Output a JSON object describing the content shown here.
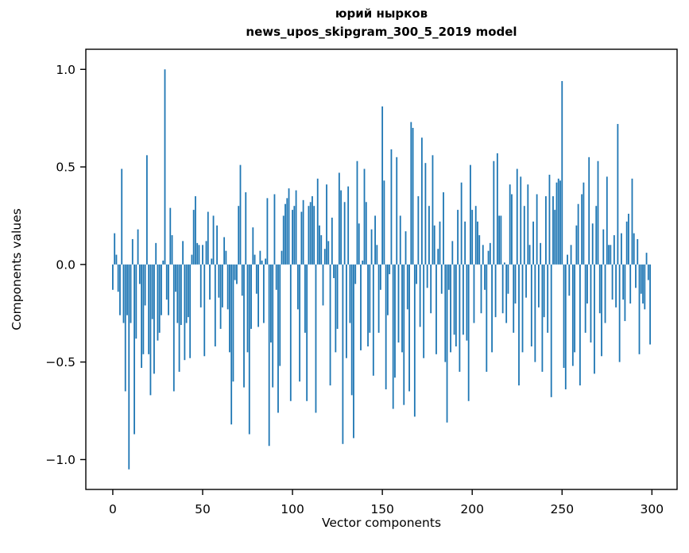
{
  "figure": {
    "title_line1": "юрий нырков",
    "title_line2": "news_upos_skipgram_300_5_2019 model"
  },
  "chart_data": {
    "type": "bar",
    "title": "юрий нырков — news_upos_skipgram_300_5_2019 model",
    "xlabel": "Vector components",
    "ylabel": "Components values",
    "x": "component indices 0..299",
    "xticks": {
      "values": [
        0,
        50,
        100,
        150,
        200,
        250,
        300
      ],
      "labels": [
        "0",
        "50",
        "100",
        "150",
        "200",
        "250",
        "300"
      ]
    },
    "yticks": {
      "values": [
        1.0,
        0.5,
        0.0,
        -0.5,
        -1.0
      ],
      "labels": [
        "1.0",
        "0.5",
        "0.0",
        "−0.5",
        "−1.0"
      ]
    },
    "xlim": [
      -15,
      314
    ],
    "ylim": [
      -1.153,
      1.103
    ],
    "grid": false,
    "legend": null,
    "bar_color": "#1f77b4",
    "values": [
      -0.13,
      0.16,
      0.05,
      -0.14,
      -0.26,
      0.49,
      -0.3,
      -0.65,
      -0.26,
      -1.05,
      -0.3,
      0.13,
      -0.87,
      -0.38,
      0.18,
      -0.1,
      -0.53,
      -0.46,
      -0.21,
      0.56,
      -0.46,
      -0.67,
      -0.28,
      -0.56,
      0.11,
      -0.39,
      -0.35,
      -0.26,
      0.02,
      1.0,
      -0.18,
      -0.26,
      0.29,
      0.15,
      -0.65,
      -0.14,
      -0.3,
      -0.55,
      -0.31,
      0.12,
      -0.49,
      -0.3,
      -0.27,
      -0.48,
      0.05,
      0.28,
      0.35,
      0.11,
      0.1,
      -0.22,
      0.1,
      -0.47,
      0.12,
      0.27,
      -0.18,
      0.03,
      0.25,
      -0.42,
      0.2,
      -0.17,
      -0.33,
      -0.22,
      0.14,
      0.07,
      -0.23,
      -0.45,
      -0.82,
      -0.6,
      -0.08,
      -0.1,
      0.3,
      0.51,
      -0.16,
      -0.63,
      0.37,
      -0.45,
      -0.87,
      -0.33,
      0.19,
      0.05,
      -0.15,
      -0.32,
      0.07,
      0.02,
      -0.3,
      0.03,
      0.34,
      -0.93,
      -0.4,
      -0.63,
      0.36,
      -0.13,
      -0.76,
      -0.52,
      0.07,
      0.25,
      0.31,
      0.34,
      0.39,
      -0.7,
      0.28,
      0.3,
      0.38,
      -0.23,
      -0.6,
      0.27,
      0.33,
      -0.35,
      -0.7,
      0.3,
      0.32,
      0.35,
      0.3,
      -0.76,
      0.44,
      0.2,
      0.15,
      -0.21,
      0.08,
      0.41,
      0.12,
      -0.62,
      0.24,
      -0.07,
      -0.45,
      -0.33,
      0.47,
      0.38,
      -0.92,
      0.32,
      -0.48,
      0.4,
      -0.3,
      -0.67,
      -0.89,
      -0.1,
      0.53,
      0.21,
      -0.44,
      0.02,
      0.49,
      0.32,
      -0.42,
      -0.35,
      0.18,
      -0.57,
      0.25,
      0.1,
      -0.35,
      -0.13,
      0.81,
      0.43,
      -0.64,
      -0.26,
      -0.05,
      0.59,
      -0.74,
      -0.58,
      0.55,
      -0.4,
      0.25,
      -0.45,
      -0.72,
      0.17,
      -0.23,
      -0.65,
      0.73,
      0.7,
      -0.78,
      -0.1,
      0.35,
      -0.32,
      0.65,
      -0.48,
      0.52,
      -0.12,
      0.3,
      -0.25,
      0.56,
      0.2,
      -0.46,
      0.08,
      0.22,
      -0.15,
      0.37,
      -0.5,
      -0.81,
      -0.13,
      -0.45,
      0.12,
      -0.36,
      -0.42,
      0.28,
      -0.55,
      0.42,
      -0.36,
      0.22,
      -0.39,
      -0.7,
      0.51,
      0.28,
      -0.3,
      0.3,
      0.22,
      0.15,
      -0.25,
      0.1,
      -0.13,
      -0.55,
      0.07,
      0.11,
      -0.45,
      0.53,
      -0.27,
      0.57,
      0.25,
      0.25,
      -0.25,
      0.01,
      -0.3,
      -0.15,
      0.41,
      0.36,
      -0.35,
      -0.2,
      0.49,
      -0.62,
      0.45,
      -0.45,
      0.3,
      -0.17,
      0.41,
      0.1,
      -0.42,
      0.22,
      -0.5,
      0.36,
      -0.22,
      0.11,
      -0.55,
      -0.27,
      0.35,
      -0.35,
      0.46,
      -0.68,
      0.35,
      0.28,
      0.42,
      0.44,
      0.43,
      0.94,
      -0.53,
      -0.64,
      0.05,
      -0.16,
      0.1,
      -0.52,
      -0.45,
      0.2,
      0.31,
      -0.62,
      0.36,
      0.42,
      -0.35,
      -0.2,
      0.55,
      -0.4,
      0.21,
      -0.56,
      0.3,
      0.53,
      -0.25,
      -0.47,
      0.18,
      -0.3,
      0.45,
      0.1,
      0.1,
      -0.18,
      0.15,
      -0.22,
      0.72,
      -0.5,
      0.16,
      -0.18,
      -0.29,
      0.22,
      0.26,
      -0.2,
      0.44,
      0.16,
      -0.12,
      0.13,
      -0.46,
      -0.15,
      -0.2,
      -0.23,
      0.06,
      -0.08,
      -0.41
    ]
  }
}
